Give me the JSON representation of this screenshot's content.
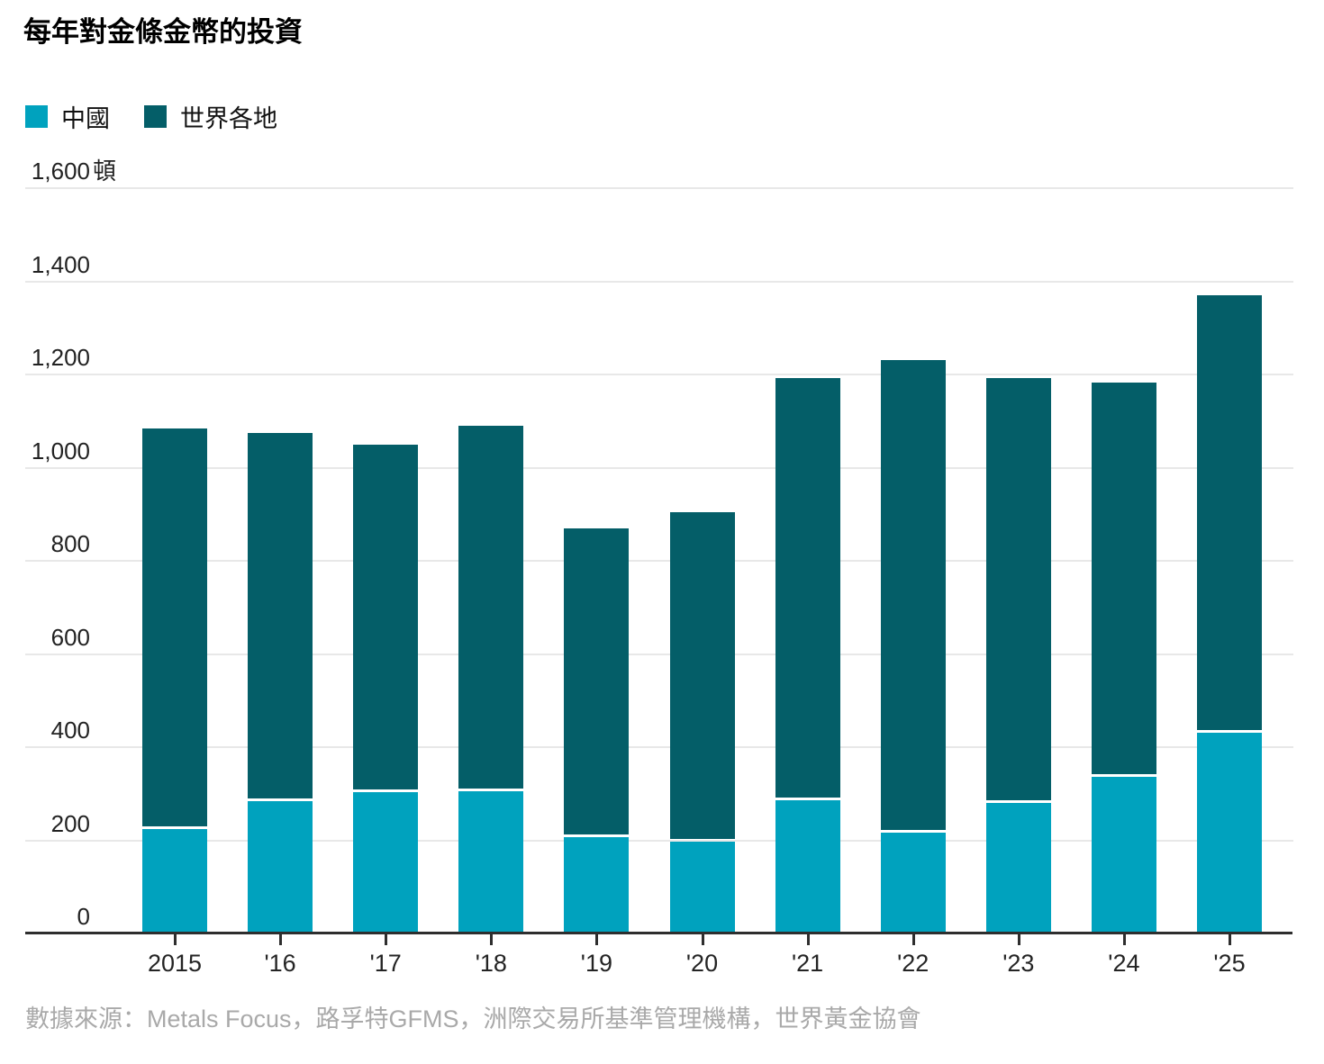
{
  "title": "每年對金條金幣的投資",
  "source": "數據來源：Metals Focus，路孚特GFMS，洲際交易所基準管理機構，世界黃金協會",
  "colors": {
    "china": "#00a2be",
    "world": "#045e68",
    "gridline": "#e8e8e8",
    "axis": "#2e2e2e",
    "source_text": "#a9a9a9"
  },
  "chart_data": {
    "type": "bar",
    "stacked": true,
    "title": "每年對金條金幣的投資",
    "unit": "頓",
    "grid": true,
    "legend_position": "top-left",
    "ylim": [
      0,
      1600
    ],
    "categories": [
      "2015",
      "'16",
      "'17",
      "'18",
      "'19",
      "'20",
      "'21",
      "'22",
      "'23",
      "'24",
      "'25"
    ],
    "series": [
      {
        "name": "中國",
        "color": "#00a2be",
        "values": [
          225,
          284,
          304,
          305,
          207,
          197,
          286,
          217,
          280,
          336,
          430
        ]
      },
      {
        "name": "世界各地",
        "color": "#045e68",
        "values": [
          860,
          791,
          746,
          785,
          663,
          708,
          906,
          1013,
          912,
          847,
          940
        ]
      }
    ],
    "totals": [
      1085,
      1075,
      1050,
      1090,
      870,
      905,
      1192,
      1230,
      1192,
      1183,
      1370
    ],
    "y_ticks": [
      {
        "value": 0,
        "label": "0"
      },
      {
        "value": 200,
        "label": "200"
      },
      {
        "value": 400,
        "label": "400"
      },
      {
        "value": 600,
        "label": "600"
      },
      {
        "value": 800,
        "label": "800"
      },
      {
        "value": 1000,
        "label": "1,000"
      },
      {
        "value": 1200,
        "label": "1,200"
      },
      {
        "value": 1400,
        "label": "1,400"
      },
      {
        "value": 1600,
        "label": "1,600",
        "unit": "頓"
      }
    ]
  }
}
